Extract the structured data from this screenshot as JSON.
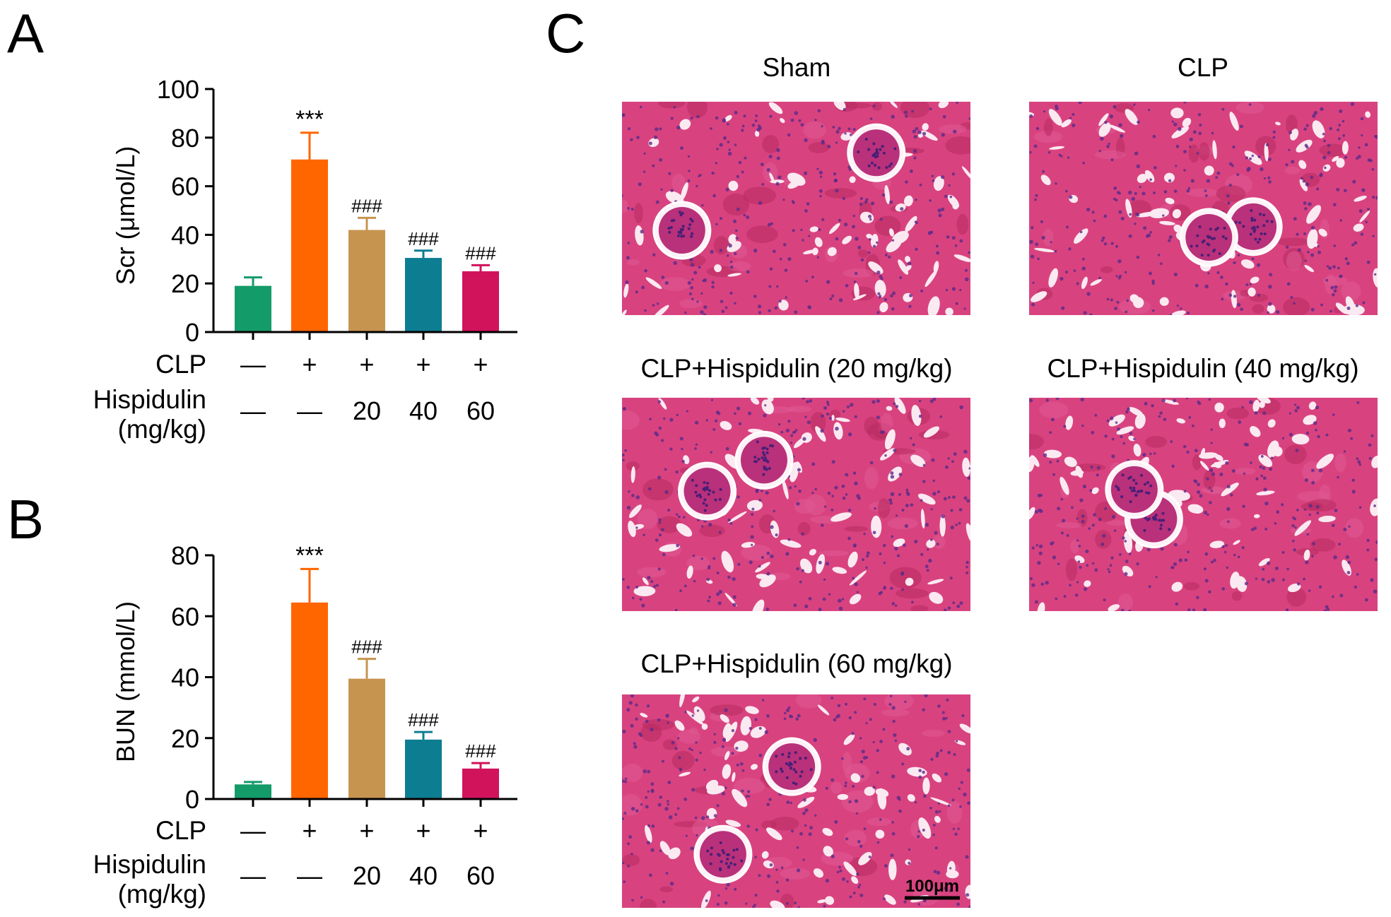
{
  "panel_letters": {
    "a": "A",
    "b": "B",
    "c": "C"
  },
  "row_labels": {
    "clp": "CLP",
    "hisp_line1": "Hispidulin",
    "hisp_line2": "(mg/kg)"
  },
  "chart_data": [
    {
      "type": "bar",
      "panel": "A",
      "ylabel": "Scr (μmol/L)",
      "ylim": [
        0,
        100
      ],
      "yticks": [
        0,
        20,
        40,
        60,
        80,
        100
      ],
      "categories": [
        "1",
        "2",
        "3",
        "4",
        "5"
      ],
      "values": [
        19,
        71,
        42,
        30.5,
        25
      ],
      "errors": [
        3.5,
        11,
        5,
        3,
        2.5
      ],
      "colors": [
        "#149b6a",
        "#ff6600",
        "#c79450",
        "#0d7d92",
        "#d1135c"
      ],
      "annotations": [
        "",
        "***",
        "###",
        "###",
        "###"
      ],
      "clp": [
        "—",
        "+",
        "+",
        "+",
        "+"
      ],
      "hispidulin": [
        "—",
        "—",
        "20",
        "40",
        "60"
      ]
    },
    {
      "type": "bar",
      "panel": "B",
      "ylabel": "BUN (mmol/L)",
      "ylim": [
        0,
        80
      ],
      "yticks": [
        0,
        20,
        40,
        60,
        80
      ],
      "categories": [
        "1",
        "2",
        "3",
        "4",
        "5"
      ],
      "values": [
        4.8,
        64.5,
        39.5,
        19.5,
        10
      ],
      "errors": [
        0.8,
        11,
        6.5,
        2.5,
        1.8
      ],
      "colors": [
        "#149b6a",
        "#ff6600",
        "#c79450",
        "#0d7d92",
        "#d1135c"
      ],
      "annotations": [
        "",
        "***",
        "###",
        "###",
        "###"
      ],
      "clp": [
        "—",
        "+",
        "+",
        "+",
        "+"
      ],
      "hispidulin": [
        "—",
        "—",
        "20",
        "40",
        "60"
      ]
    }
  ],
  "histology": {
    "images": [
      {
        "title": "Sham",
        "seed": 3
      },
      {
        "title": "CLP",
        "seed": 11
      },
      {
        "title": "CLP+Hispidulin (20 mg/kg)",
        "seed": 7
      },
      {
        "title": "CLP+Hispidulin (40 mg/kg)",
        "seed": 19
      },
      {
        "title": "CLP+Hispidulin (60 mg/kg)",
        "seed": 5
      }
    ],
    "scale_bar_label": "100μm",
    "tissue_color": "#d8437f"
  }
}
